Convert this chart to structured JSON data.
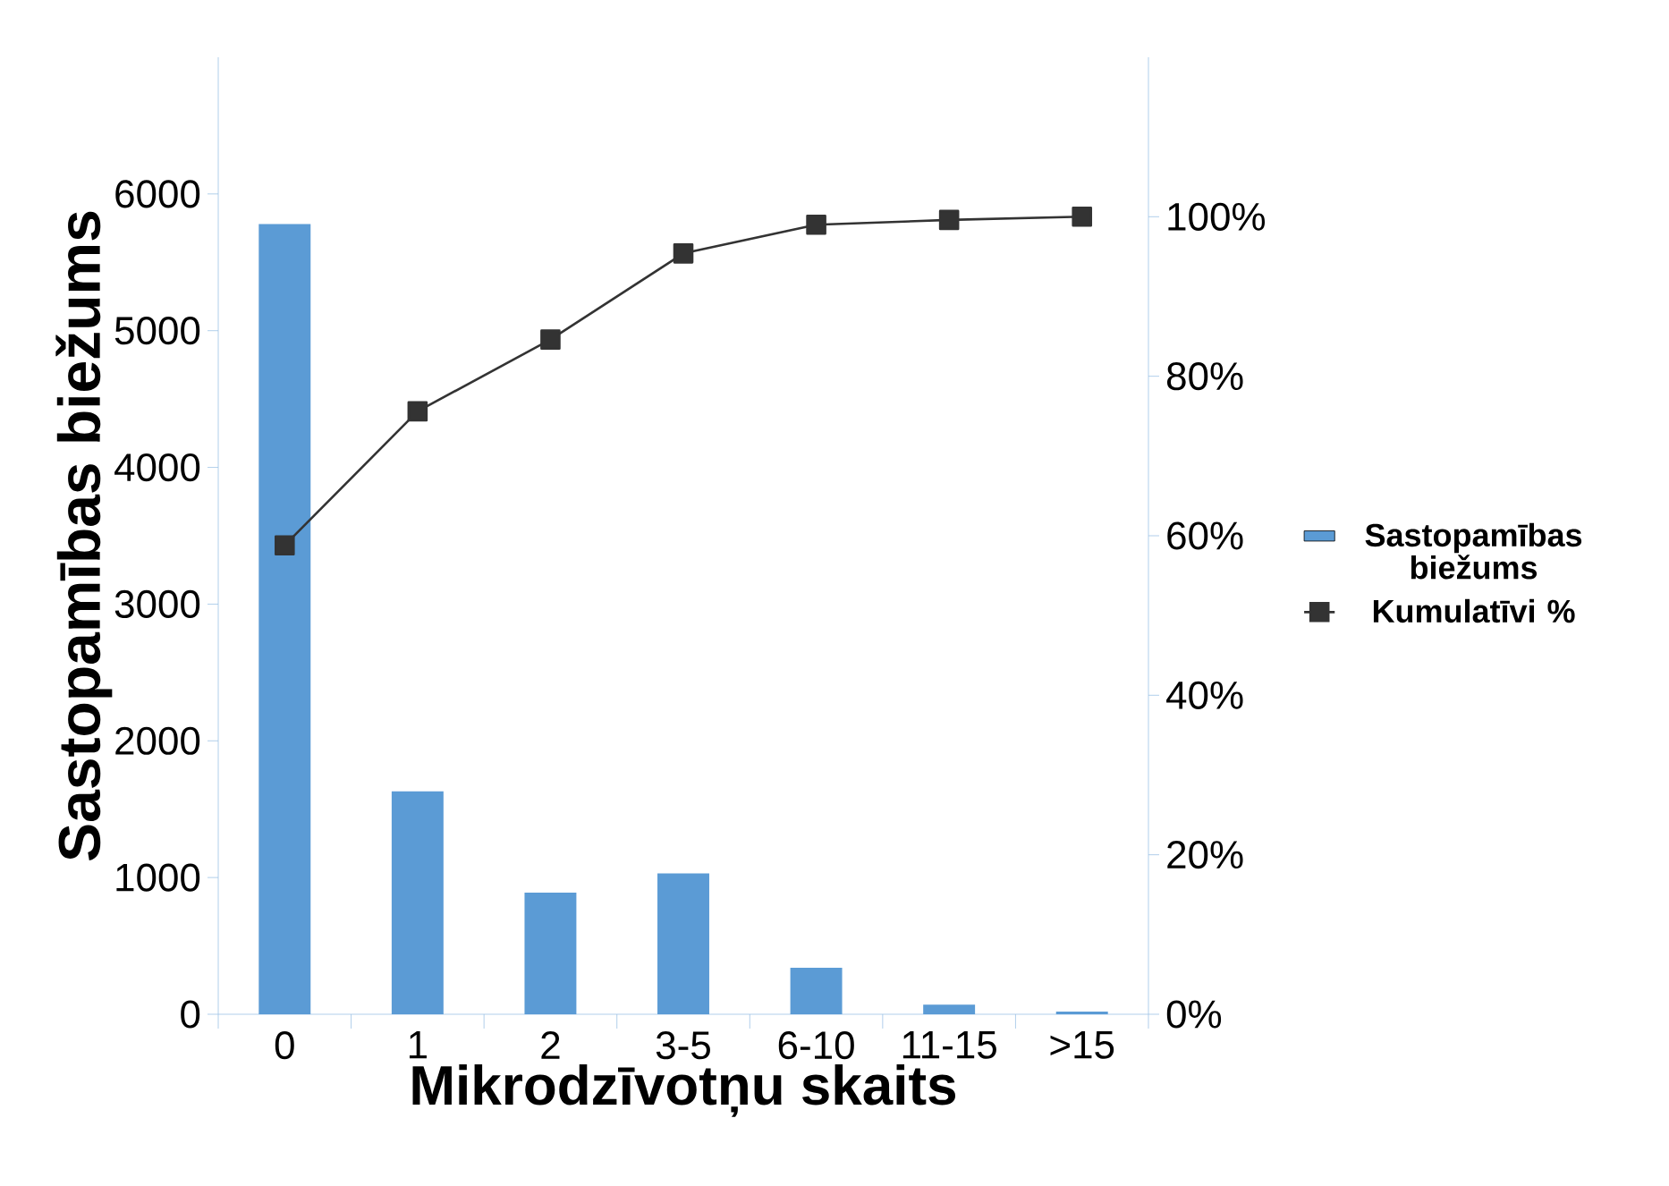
{
  "chart_data": {
    "type": "bar",
    "xlabel": "Mikrodzīvotņu skaits",
    "ylabel": "Sastopamības biežums",
    "categories": [
      "0",
      "1",
      "2",
      "3-5",
      "6-10",
      "11-15",
      ">15"
    ],
    "ylim": [
      0,
      7000
    ],
    "yticks": [
      0,
      1000,
      2000,
      3000,
      4000,
      5000,
      6000
    ],
    "y2lim": [
      0,
      120
    ],
    "y2ticks": [
      {
        "value": 0,
        "label": "0%"
      },
      {
        "value": 20,
        "label": "20%"
      },
      {
        "value": 40,
        "label": "40%"
      },
      {
        "value": 60,
        "label": "60%"
      },
      {
        "value": 80,
        "label": "80%"
      },
      {
        "value": 100,
        "label": "100%"
      }
    ],
    "legend": "right",
    "series": [
      {
        "name": "Sastopamības biežums",
        "color": "#5b9bd5",
        "values": [
          5780,
          1630,
          890,
          1030,
          340,
          70,
          20
        ]
      },
      {
        "name": "Kumulatīvi %",
        "type": "line",
        "axis": "y2",
        "color": "#333333",
        "marker": "square",
        "values": [
          58.8,
          75.6,
          84.6,
          95.4,
          99.0,
          99.6,
          100
        ]
      }
    ]
  }
}
